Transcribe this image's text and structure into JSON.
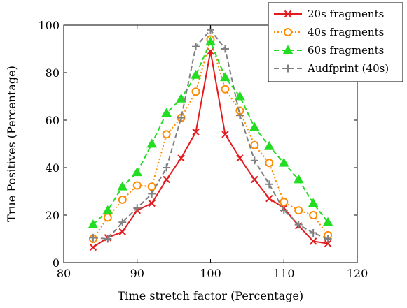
{
  "chart_data": {
    "type": "line",
    "xlabel": "Time stretch factor (Percentage)",
    "ylabel": "True Positives (Percentage)",
    "xlim": [
      80,
      120
    ],
    "ylim": [
      0,
      100
    ],
    "xticks": [
      80,
      90,
      100,
      110,
      120
    ],
    "yticks": [
      0,
      20,
      40,
      60,
      80,
      100
    ],
    "grid": false,
    "legend_position": "top-right",
    "x": [
      84,
      86,
      88,
      90,
      92,
      94,
      96,
      98,
      100,
      102,
      104,
      106,
      108,
      110,
      112,
      114,
      116
    ],
    "series": [
      {
        "name": "20s fragments",
        "color": "#e41a1c",
        "marker": "x-cross",
        "line": "solid",
        "values": [
          6.5,
          10.5,
          13,
          22,
          25,
          35,
          44,
          55,
          89,
          54,
          44,
          35,
          27,
          23,
          15.5,
          9,
          8
        ]
      },
      {
        "name": "40s fragments",
        "color": "#ff8c00",
        "marker": "open-circle",
        "line": "dotted",
        "values": [
          10,
          19,
          26.5,
          32.5,
          32,
          54,
          61,
          72,
          94,
          73,
          64,
          49.5,
          42,
          25.5,
          22,
          20,
          11.5
        ]
      },
      {
        "name": "60s fragments",
        "color": "#22dd22",
        "marker": "triangle",
        "line": "dashed",
        "values": [
          16,
          22,
          32,
          38,
          50,
          63,
          69,
          79,
          93,
          78,
          70,
          57,
          49,
          42,
          35,
          25,
          17
        ]
      },
      {
        "name": "Audfprint (40s)",
        "color": "#808080",
        "marker": "plus",
        "line": "dashed",
        "values": [
          10.5,
          10,
          17,
          23,
          29,
          40,
          61,
          91,
          98,
          90,
          62,
          43,
          33,
          22,
          16,
          12.5,
          10
        ]
      }
    ]
  }
}
